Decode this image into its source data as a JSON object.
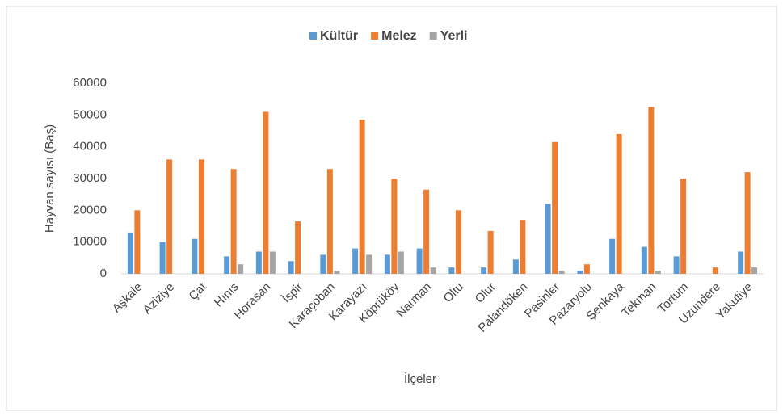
{
  "chart_data": {
    "type": "bar",
    "y_label": "Hayvan sayısı (Baş)",
    "x_label": "İlçeler",
    "categories": [
      "Aşkale",
      "Aziziye",
      "Çat",
      "Hınıs",
      "Horasan",
      "İspir",
      "Karaçoban",
      "Karayazı",
      "Köprüköy",
      "Narman",
      "Oltu",
      "Olur",
      "Palandöken",
      "Pasinler",
      "Pazaryolu",
      "Şenkaya",
      "Tekman",
      "Tortum",
      "Uzundere",
      "Yakutiye"
    ],
    "series": [
      {
        "name": "Kültür",
        "color": "#5b9bd5",
        "values": [
          13000,
          10000,
          11000,
          5500,
          7000,
          4000,
          6000,
          8000,
          6000,
          8000,
          2000,
          2000,
          4500,
          22000,
          1000,
          11000,
          8500,
          5500,
          0,
          7000
        ]
      },
      {
        "name": "Melez",
        "color": "#ed7d31",
        "values": [
          20000,
          36000,
          36000,
          33000,
          51000,
          16500,
          33000,
          48500,
          30000,
          26500,
          20000,
          13500,
          17000,
          41500,
          3000,
          44000,
          52500,
          30000,
          2000,
          32000
        ]
      },
      {
        "name": "Yerli",
        "color": "#a5a5a5",
        "values": [
          0,
          0,
          0,
          3000,
          7000,
          0,
          1000,
          6000,
          7000,
          2000,
          0,
          0,
          0,
          1000,
          0,
          0,
          1000,
          0,
          0,
          2000
        ]
      }
    ],
    "ylim": [
      0,
      60000
    ],
    "yticks": [
      0,
      10000,
      20000,
      30000,
      40000,
      50000,
      60000
    ],
    "grid": false,
    "legend": "top"
  }
}
